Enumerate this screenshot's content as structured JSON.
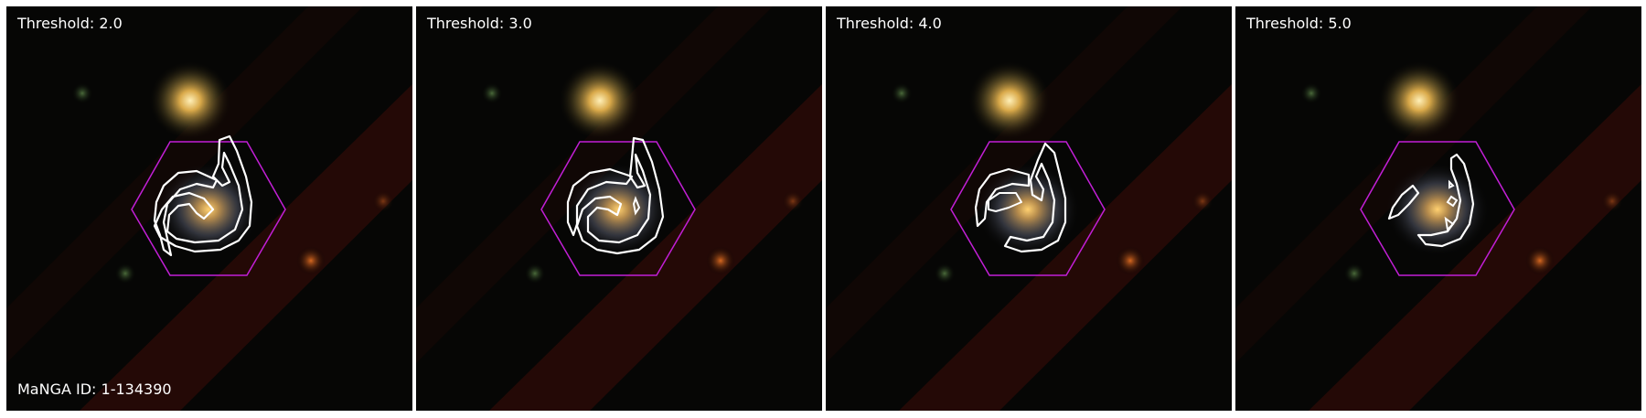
{
  "panels": [
    {
      "threshold_label": "Threshold: 2.0",
      "threshold": 2.0,
      "manga_label": "MaNGA ID: 1-134390"
    },
    {
      "threshold_label": "Threshold: 3.0",
      "threshold": 3.0,
      "manga_label": ""
    },
    {
      "threshold_label": "Threshold: 4.0",
      "threshold": 4.0,
      "manga_label": ""
    },
    {
      "threshold_label": "Threshold: 5.0",
      "threshold": 5.0,
      "manga_label": ""
    }
  ],
  "colors": {
    "hexagon": "#c21fd6",
    "contour": "#ffffff",
    "background": "#050505",
    "band": "#2a0b07"
  }
}
